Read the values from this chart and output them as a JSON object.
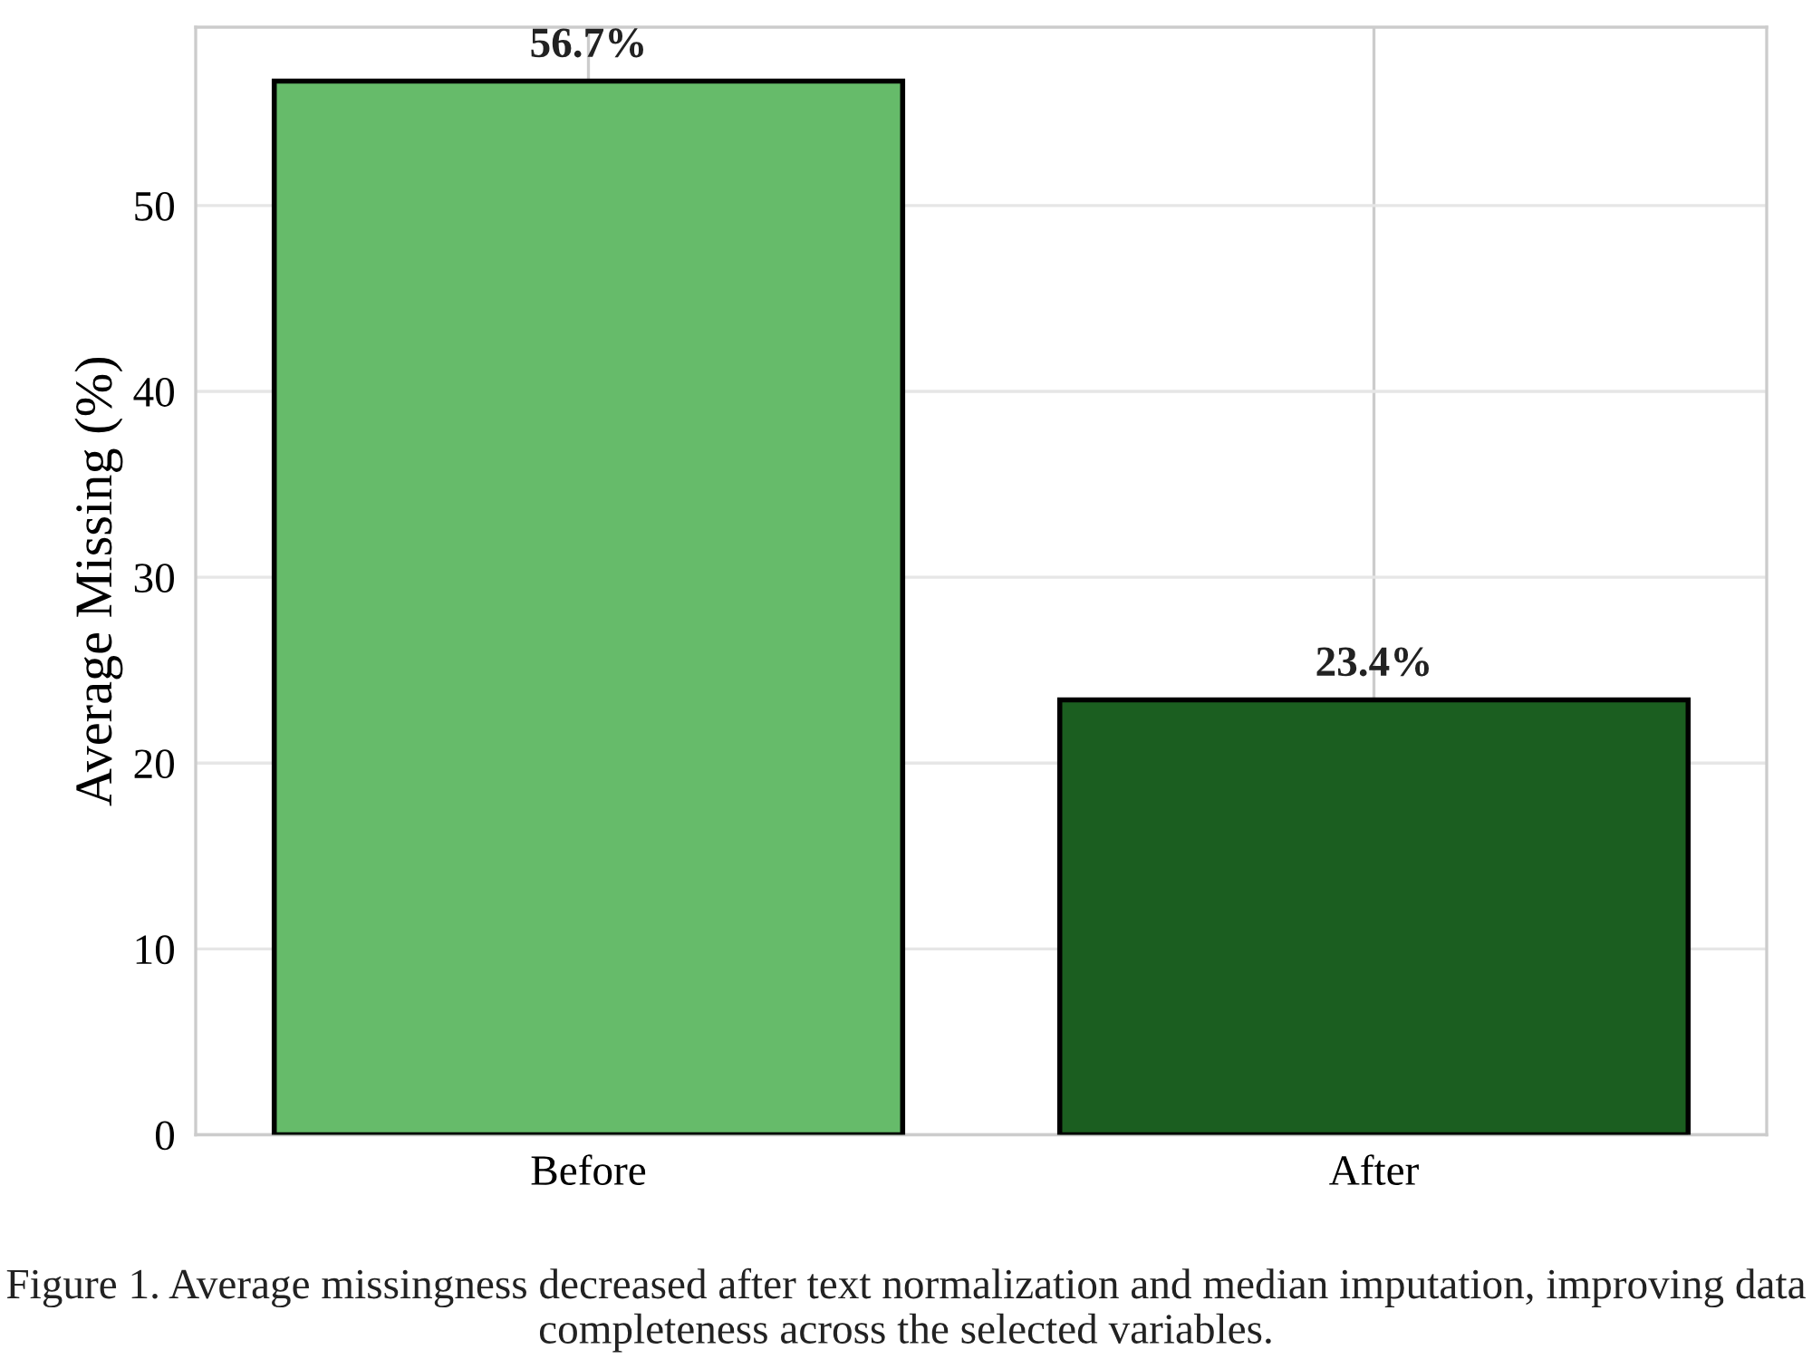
{
  "chart_data": {
    "type": "bar",
    "ylabel": "Average Missing (%)",
    "categories": [
      "Before",
      "After"
    ],
    "values": [
      56.7,
      23.4
    ],
    "colors": [
      "#66bb6a",
      "#1b5e20"
    ],
    "value_labels": [
      "56.7%",
      "23.4%"
    ],
    "ylim": [
      0,
      59.6
    ],
    "yticks": [
      0,
      10,
      20,
      30,
      40,
      50
    ],
    "grid": true,
    "annotations": [
      "Figure 1. Average missingness decreased after text normalization and median imputation, improving data completeness across the selected variables."
    ]
  }
}
